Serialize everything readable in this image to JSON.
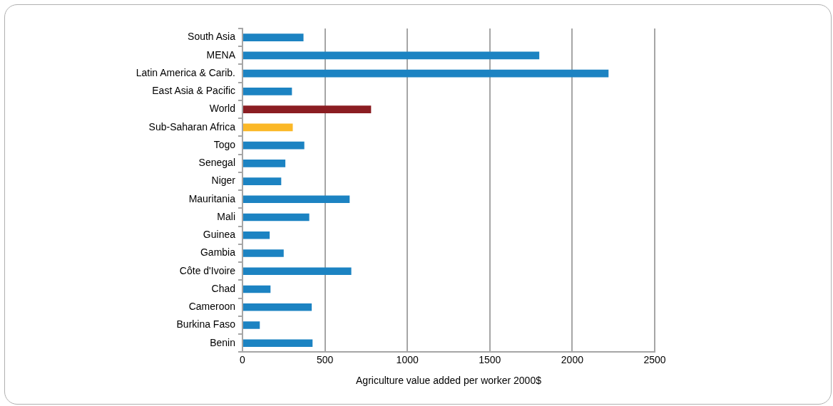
{
  "chart_data": {
    "type": "bar",
    "orientation": "horizontal",
    "xlabel": "Agriculture value added per worker 2000$",
    "categories": [
      "South Asia",
      "MENA",
      "Latin America & Carib.",
      "East Asia & Pacific",
      "World",
      "Sub-Saharan Africa",
      "Togo",
      "Senegal",
      "Niger",
      "Mauritania",
      "Mali",
      "Guinea",
      "Gambia",
      "Côte d'Ivoire",
      "Chad",
      "Cameroon",
      "Burkina Faso",
      "Benin"
    ],
    "values": [
      370,
      1800,
      2220,
      300,
      780,
      305,
      375,
      260,
      235,
      650,
      405,
      165,
      250,
      660,
      170,
      420,
      105,
      425
    ],
    "colors": [
      "#1c83c2",
      "#1c83c2",
      "#1c83c2",
      "#1c83c2",
      "#8b1d22",
      "#fbb827",
      "#1c83c2",
      "#1c83c2",
      "#1c83c2",
      "#1c83c2",
      "#1c83c2",
      "#1c83c2",
      "#1c83c2",
      "#1c83c2",
      "#1c83c2",
      "#1c83c2",
      "#1c83c2",
      "#1c83c2"
    ],
    "xlim": [
      0,
      2500
    ],
    "xticks": [
      0,
      500,
      1000,
      1500,
      2000,
      2500
    ],
    "grid": "x"
  }
}
